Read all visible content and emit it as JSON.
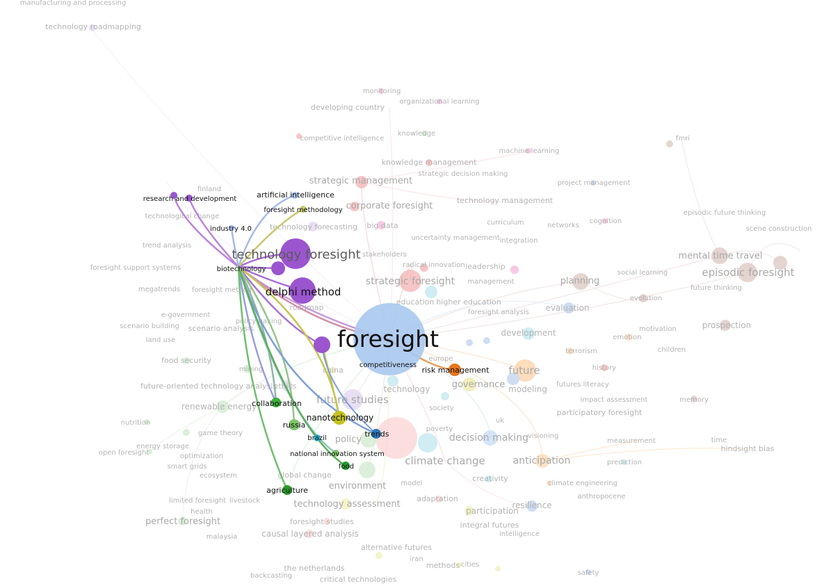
{
  "focus_term": "technology foresight",
  "highlighted": [
    {
      "key": "foresight",
      "label": "foresight",
      "color": "#a9c8ee"
    },
    {
      "key": "technology_foresight",
      "label": "technology foresight",
      "color": "#9a55cf"
    },
    {
      "key": "delphi_method",
      "label": "delphi method",
      "color": "#9a55cf"
    },
    {
      "key": "research_and_development",
      "label": "research and development",
      "color": "#9a55cf"
    },
    {
      "key": "artificial_intelligence",
      "label": "artificial intelligence",
      "color": "#a9c0ea"
    },
    {
      "key": "foresight_methodology",
      "label": "foresight methodology",
      "color": "#c5c96a"
    },
    {
      "key": "industry_4_0",
      "label": "industry 4.0",
      "color": "#9db5e8"
    },
    {
      "key": "biotechnology",
      "label": "biotechnology",
      "color": "#9a55cf"
    },
    {
      "key": "competitiveness",
      "label": "competitiveness",
      "color": "#a9c8ee"
    },
    {
      "key": "risk_management",
      "label": "risk management",
      "color": "#e8761c"
    },
    {
      "key": "collaboration",
      "label": "collaboration",
      "color": "#3caf3c"
    },
    {
      "key": "nanotechnology",
      "label": "nanotechnology",
      "color": "#c4c21e"
    },
    {
      "key": "russia",
      "label": "russia",
      "color": "#7fc46a"
    },
    {
      "key": "trends",
      "label": "trends",
      "color": "#2e74b8"
    },
    {
      "key": "brazil",
      "label": "brazil",
      "color": "#2fb3cf"
    },
    {
      "key": "national_innovation_system",
      "label": "national innovation system",
      "color": "#7fc46a"
    },
    {
      "key": "food",
      "label": "food",
      "color": "#1f9a2e"
    },
    {
      "key": "agriculture",
      "label": "agriculture",
      "color": "#2a9a2a"
    }
  ],
  "background_terms": [
    "manufacturing and processing",
    "technology roadmapping",
    "monitoring",
    "organizational learning",
    "developing country",
    "competitive intelligence",
    "knowledge",
    "fmri",
    "machine learning",
    "knowledge management",
    "strategic decision making",
    "strategic management",
    "project management",
    "finland",
    "corporate foresight",
    "technology management",
    "episodic future thinking",
    "technological change",
    "technology forecasting",
    "big data",
    "curriculum",
    "networks",
    "cognition",
    "scene construction",
    "integration",
    "uncertainty management",
    "trend analysis",
    "stakeholders",
    "leadership",
    "mental time travel",
    "radical innovation",
    "social learning",
    "episodic foresight",
    "foresight support systems",
    "strategic foresight",
    "management",
    "planning",
    "future thinking",
    "megatrends",
    "foresight method",
    "roadmap",
    "education",
    "higher education",
    "evolution",
    "evaluation",
    "e-government",
    "foresight analysis",
    "scenario building",
    "policymaking",
    "scenario analysis",
    "motivation",
    "development",
    "prospection",
    "land use",
    "emotion",
    "terrorism",
    "children",
    "food security",
    "mining",
    "europe",
    "history",
    "china",
    "future",
    "future-oriented technology analysis",
    "ethics",
    "governance",
    "modeling",
    "futures literacy",
    "renewable energy",
    "technology",
    "memory",
    "future studies",
    "impact assessment",
    "society",
    "participatory foresight",
    "nutrition",
    "game theory",
    "poverty",
    "uk",
    "policy",
    "measurement",
    "time",
    "open foresight",
    "energy storage",
    "decision making",
    "visioning",
    "hindsight bias",
    "optimization",
    "smart grids",
    "climate change",
    "prediction",
    "anticipation",
    "ecosystem",
    "global change",
    "model",
    "creativity",
    "climate engineering",
    "environment",
    "limited foresight",
    "livestock",
    "adaptation",
    "anthropocene",
    "technology assessment",
    "resilience",
    "health",
    "participation",
    "perfect foresight",
    "integral futures",
    "malaysia",
    "causal layered analysis",
    "foresight studies",
    "intelligence",
    "alternative futures",
    "iran",
    "the netherlands",
    "methods",
    "cities",
    "safety",
    "backcasting",
    "critical technologies"
  ],
  "cluster_colors": [
    "#f2a4a4",
    "#8fd18f",
    "#d9b8e8",
    "#a9c8ee",
    "#c8aaa0",
    "#f7c48e",
    "#9edbe6",
    "#e5e07a",
    "#f3b8dc"
  ]
}
